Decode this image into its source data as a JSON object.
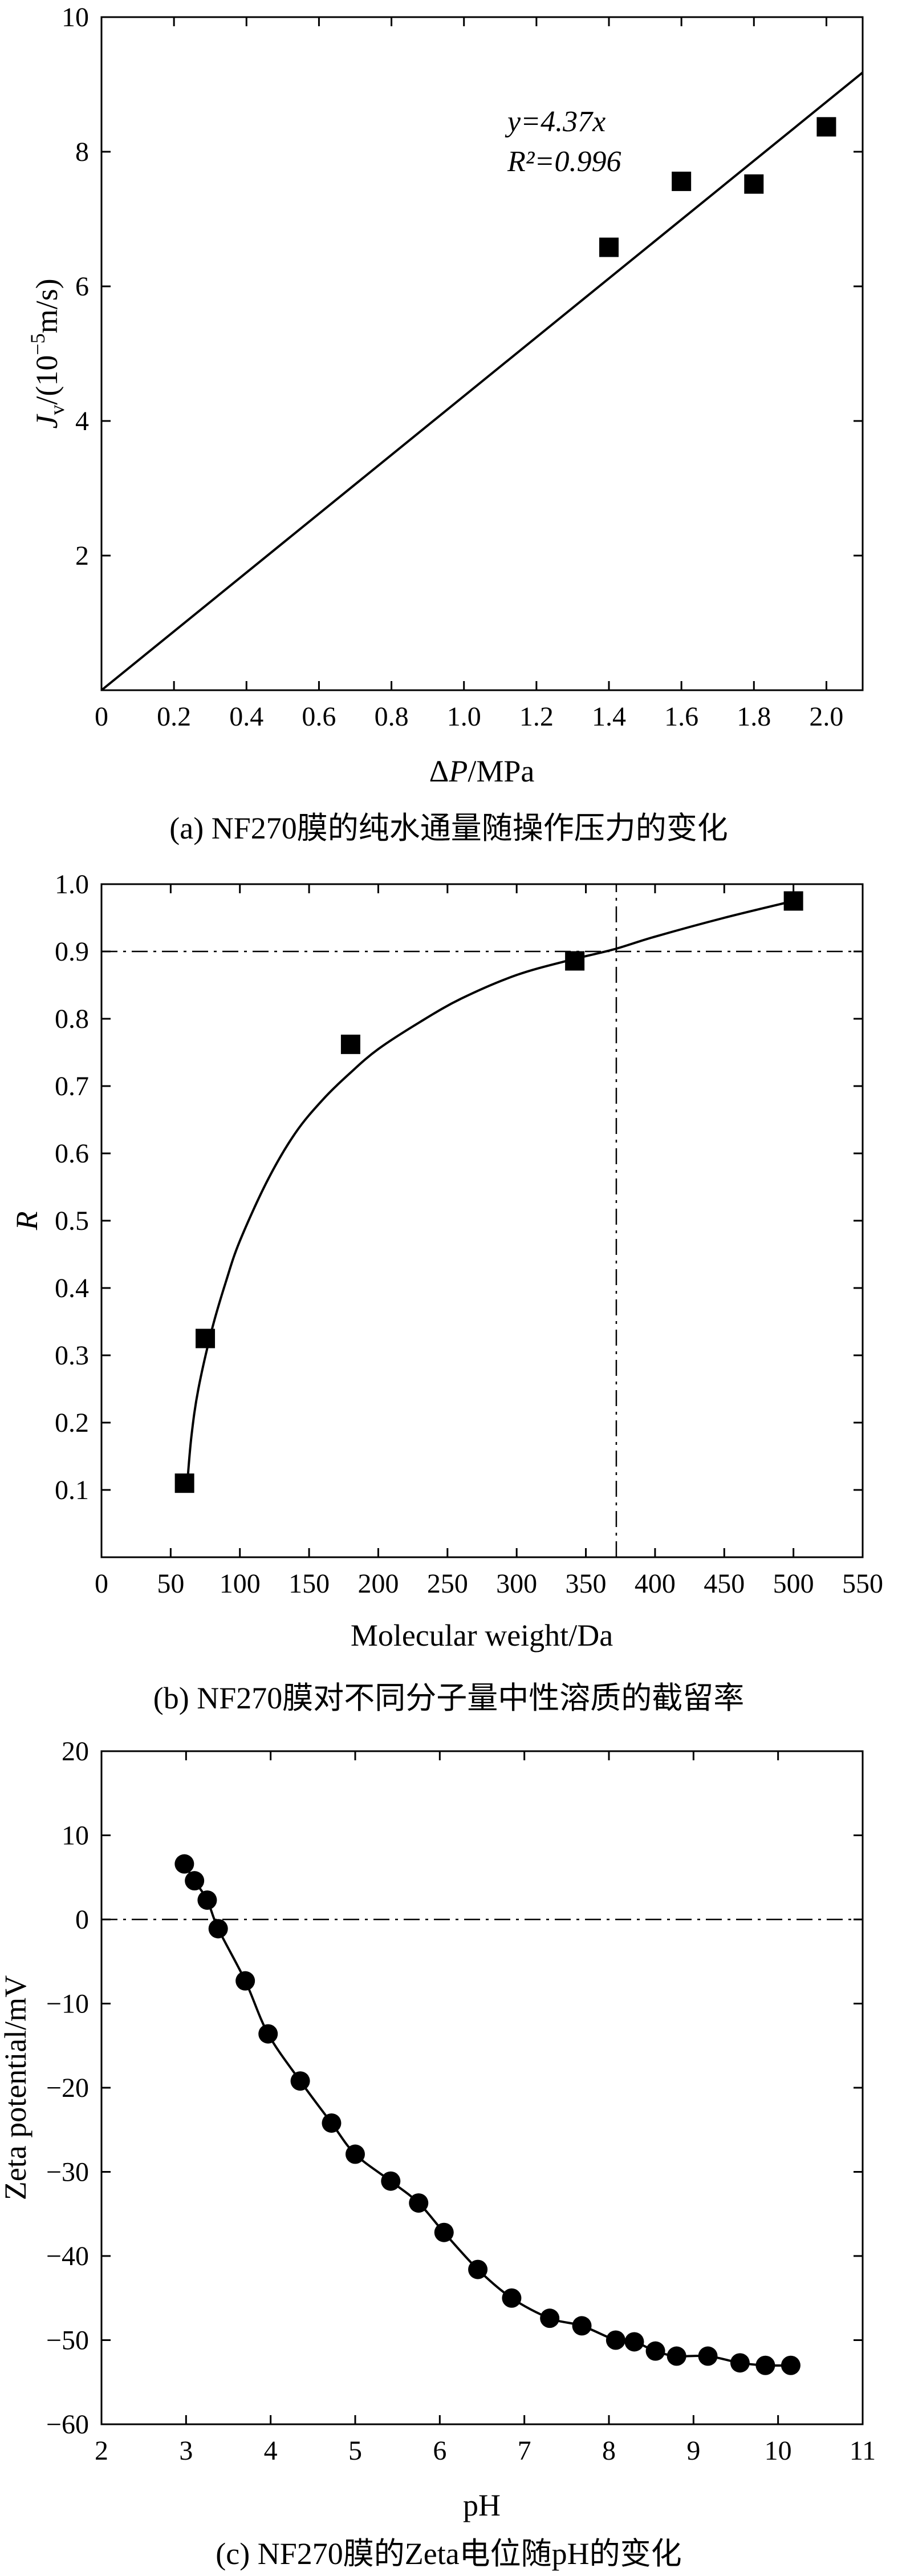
{
  "colors": {
    "ink": "#000000",
    "background": "#ffffff"
  },
  "chart_data": [
    {
      "type": "scatter",
      "caption": "(a) NF270膜的纯水通量随操作压力的变化",
      "xlabel": "ΔP/MPa",
      "ylabel": "J_v/(10^-5 m/s)",
      "xlim": [
        0,
        2.1
      ],
      "ylim": [
        0,
        10
      ],
      "xticks": [
        0,
        0.2,
        0.4,
        0.6,
        0.8,
        1.0,
        1.2,
        1.4,
        1.6,
        1.8,
        2.0
      ],
      "xtick_labels": [
        "0",
        "0.2",
        "0.4",
        "0.6",
        "0.8",
        "1.0",
        "1.2",
        "1.4",
        "1.6",
        "1.8",
        "2.0"
      ],
      "yticks": [
        2,
        4,
        6,
        8,
        10
      ],
      "ytick_labels": [
        "2",
        "4",
        "6",
        "8",
        "10"
      ],
      "marker": "square",
      "points": {
        "x": [
          1.4,
          1.6,
          1.8,
          2.0
        ],
        "y": [
          6.58,
          7.56,
          7.52,
          8.37
        ]
      },
      "fit_line": {
        "slope": 4.37,
        "intercept": 0,
        "x_range": [
          0,
          2.1
        ]
      },
      "annotation": {
        "equation": "y=4.37x",
        "r2": "R²=0.996"
      },
      "grid": false
    },
    {
      "type": "scatter",
      "caption": "(b) NF270膜对不同分子量中性溶质的截留率",
      "xlabel": "Molecular weight/Da",
      "ylabel": "R",
      "xlim": [
        0,
        550
      ],
      "ylim": [
        0,
        1.0
      ],
      "xticks": [
        0,
        50,
        100,
        150,
        200,
        250,
        300,
        350,
        400,
        450,
        500,
        550
      ],
      "xtick_labels": [
        "0",
        "50",
        "100",
        "150",
        "200",
        "250",
        "300",
        "350",
        "400",
        "450",
        "500",
        "550"
      ],
      "yticks": [
        0.1,
        0.2,
        0.3,
        0.4,
        0.5,
        0.6,
        0.7,
        0.8,
        0.9,
        1.0
      ],
      "ytick_labels": [
        "0.1",
        "0.2",
        "0.3",
        "0.4",
        "0.5",
        "0.6",
        "0.7",
        "0.8",
        "0.9",
        "1.0"
      ],
      "marker": "square",
      "points": {
        "x": [
          60,
          75,
          180,
          342,
          500
        ],
        "y": [
          0.11,
          0.325,
          0.762,
          0.886,
          0.975
        ]
      },
      "fit_curve": {
        "x": [
          62,
          65,
          70,
          80,
          90,
          100,
          120,
          140,
          160,
          180,
          200,
          230,
          260,
          300,
          340,
          370,
          400,
          450,
          500
        ],
        "y": [
          0.11,
          0.18,
          0.25,
          0.34,
          0.41,
          0.47,
          0.56,
          0.63,
          0.68,
          0.72,
          0.755,
          0.795,
          0.83,
          0.865,
          0.888,
          0.903,
          0.922,
          0.95,
          0.975
        ]
      },
      "reference_lines": {
        "h": 0.9,
        "v": 372
      },
      "grid": false
    },
    {
      "type": "line",
      "caption": "(c) NF270膜的Zeta电位随pH的变化",
      "xlabel": "pH",
      "ylabel": "Zeta potential/mV",
      "xlim": [
        2,
        11
      ],
      "ylim": [
        -60,
        20
      ],
      "xticks": [
        2,
        3,
        4,
        5,
        6,
        7,
        8,
        9,
        10,
        11
      ],
      "xtick_labels": [
        "2",
        "3",
        "4",
        "5",
        "6",
        "7",
        "8",
        "9",
        "10",
        "11"
      ],
      "yticks": [
        -60,
        -50,
        -40,
        -30,
        -20,
        -10,
        0,
        10,
        20
      ],
      "ytick_labels": [
        "−60",
        "−50",
        "−40",
        "−30",
        "−20",
        "−10",
        "0",
        "10",
        "20"
      ],
      "marker": "circle",
      "points": {
        "x": [
          2.98,
          3.1,
          3.25,
          3.38,
          3.7,
          3.97,
          4.35,
          4.72,
          5.0,
          5.42,
          5.75,
          6.05,
          6.45,
          6.85,
          7.3,
          7.68,
          8.08,
          8.3,
          8.55,
          8.8,
          9.17,
          9.55,
          9.85,
          10.15
        ],
        "y": [
          6.6,
          4.6,
          2.3,
          -1.1,
          -7.3,
          -13.6,
          -19.2,
          -24.2,
          -27.9,
          -31.1,
          -33.7,
          -37.2,
          -41.6,
          -45.0,
          -47.4,
          -48.3,
          -50.0,
          -50.2,
          -51.3,
          -51.9,
          -51.9,
          -52.7,
          -53.0,
          -53.0
        ]
      },
      "reference_lines": {
        "h": 0
      },
      "grid": false
    }
  ]
}
